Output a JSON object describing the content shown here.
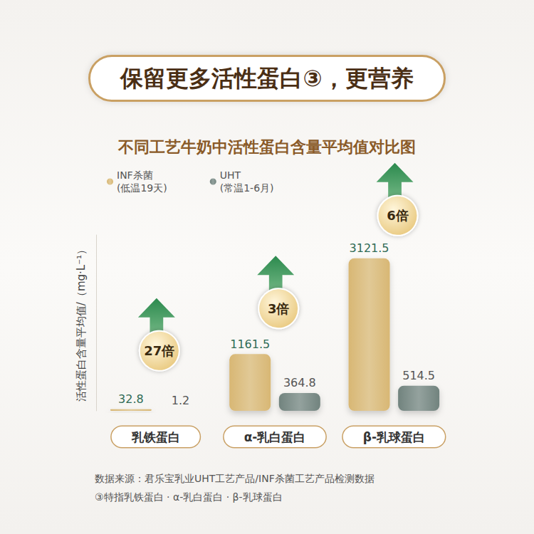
{
  "chart_data": {
    "type": "bar",
    "title": "保留更多活性蛋白③，更营养",
    "subtitle": "不同工艺牛奶中活性蛋白含量平均值对比图",
    "y_label": "活性蛋白含量平均值/（mg·L⁻¹）",
    "categories": [
      "乳铁蛋白",
      "α-乳白蛋白",
      "β-乳球蛋白"
    ],
    "series": [
      {
        "name": "INF杀菌",
        "note": "(低温19天)",
        "color": "#d8b774",
        "values": [
          32.8,
          1161.5,
          3121.5
        ]
      },
      {
        "name": "UHT",
        "note": "(常温1-6月)",
        "color": "#71837e",
        "values": [
          1.2,
          364.8,
          514.5
        ]
      }
    ],
    "annotations": [
      "27倍",
      "3倍",
      "6倍"
    ],
    "footnotes": [
      "数据来源：君乐宝乳业UHT工艺产品/INF杀菌工艺产品检测数据",
      "③特指乳铁蛋白 · α-乳白蛋白 · β-乳球蛋白"
    ],
    "ylim": [
      0,
      3600
    ],
    "grid": false,
    "legend": "top-left",
    "data_labels": true,
    "tick_labels": "x"
  }
}
